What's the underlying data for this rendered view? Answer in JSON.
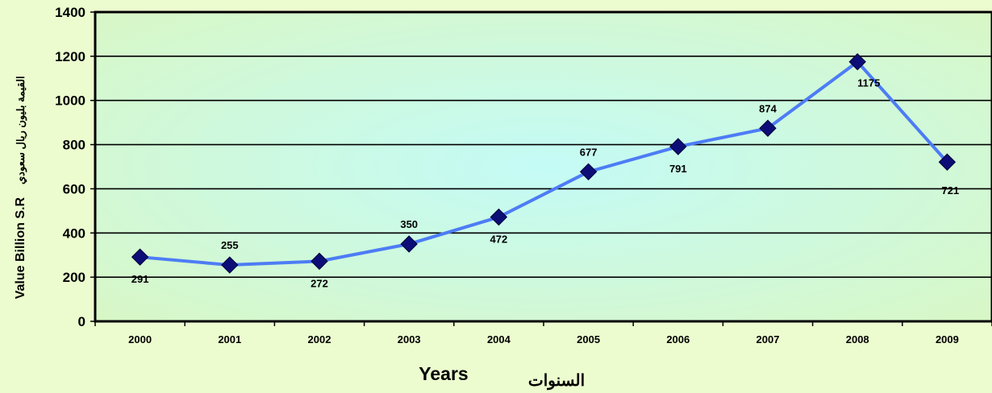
{
  "chart_data": {
    "type": "line",
    "categories": [
      "2000",
      "2001",
      "2002",
      "2003",
      "2004",
      "2005",
      "2006",
      "2007",
      "2008",
      "2009"
    ],
    "series": [
      {
        "values": [
          291,
          255,
          272,
          350,
          472,
          677,
          791,
          874,
          1175,
          721
        ],
        "color": "#4d7cf5",
        "marker_color": "#0d0d78"
      }
    ],
    "data_labels": [
      "291",
      "255",
      "272",
      "350",
      "472",
      "677",
      "791",
      "874",
      "1175",
      "721"
    ],
    "ylim": [
      0,
      1400
    ],
    "yticks": [
      "0",
      "200",
      "400",
      "600",
      "800",
      "1000",
      "1200",
      "1400"
    ],
    "xlabel_en": "Years",
    "xlabel_ar": "السنوات",
    "ylabel_en": "Value Billion S.R",
    "ylabel_ar": "القيمة بليون ريال سعودي",
    "grid": true,
    "legend": "none",
    "colors": {
      "page_background": "#ecfccf",
      "plot_center": "#c4fbf6",
      "plot_edge": "#d8f7c6",
      "gridline": "#000000"
    }
  }
}
